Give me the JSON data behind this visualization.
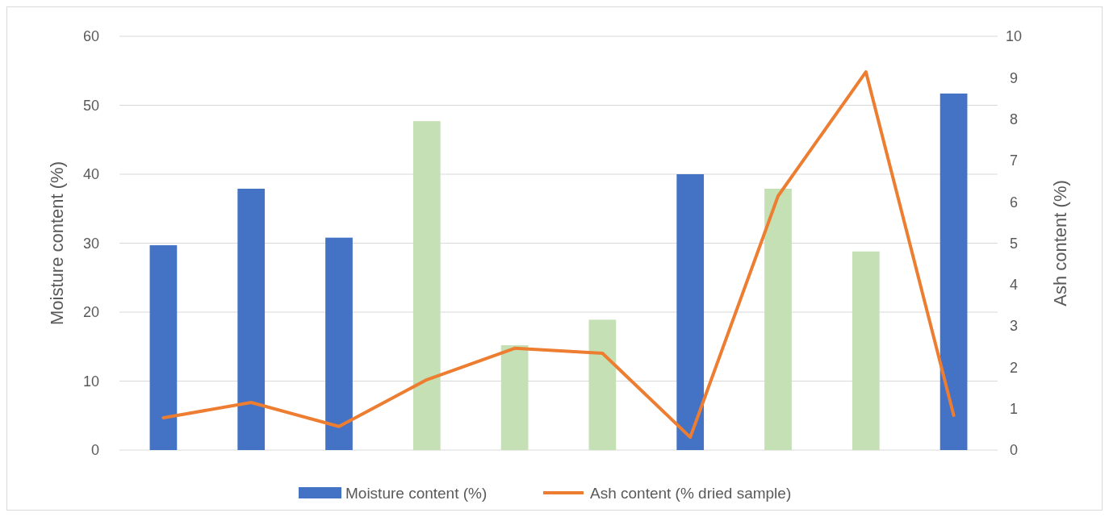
{
  "chart_data": {
    "type": "bar",
    "ylabel": "Moisture content (%)",
    "y2label": "Ash content (%)",
    "categories": [
      null,
      null,
      null,
      null,
      null,
      null,
      null,
      null,
      null,
      null
    ],
    "series": [
      {
        "name": "Moisture content (%)",
        "color": "#4472c4",
        "colors": [
          "#4472c4",
          "#4472c4",
          "#4472c4",
          "#c5e0b4",
          "#c5e0b4",
          "#c5e0b4",
          "#4472c4",
          "#c5e0b4",
          "#c5e0b4",
          "#4472c4"
        ],
        "values": [
          29.7,
          37.9,
          30.8,
          47.7,
          15.2,
          18.9,
          40.0,
          37.9,
          28.8,
          51.7
        ]
      },
      {
        "name": "Ash content (% dried sample)",
        "type": "line",
        "axis": "y2",
        "color": "#ed7d31",
        "values": [
          0.78,
          1.15,
          0.57,
          1.7,
          2.46,
          2.34,
          0.31,
          6.14,
          9.14,
          0.84
        ]
      }
    ],
    "ylim": [
      0,
      60
    ],
    "yticks": [
      0,
      10,
      20,
      30,
      40,
      50,
      60
    ],
    "y2lim": [
      0,
      10
    ],
    "y2ticks": [
      0,
      1,
      2,
      3,
      4,
      5,
      6,
      7,
      8,
      9,
      10
    ],
    "grid": "y",
    "legend": "bottom",
    "marker": "none",
    "line_style": "solid"
  }
}
